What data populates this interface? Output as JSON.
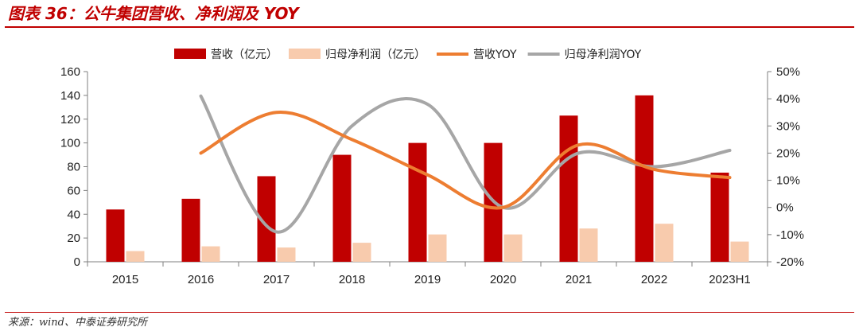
{
  "header": {
    "title": "图表 36：公牛集团营收、净利润及 YOY"
  },
  "footer": {
    "source": "来源：wind、中泰证券研究所"
  },
  "chart_data": {
    "type": "bar",
    "categories": [
      "2015",
      "2016",
      "2017",
      "2018",
      "2019",
      "2020",
      "2021",
      "2022",
      "2023H1"
    ],
    "series": [
      {
        "name": "营收（亿元）",
        "type": "bar",
        "axis": "left",
        "color": "#c00000",
        "values": [
          44,
          53,
          72,
          90,
          100,
          100,
          123,
          140,
          75
        ]
      },
      {
        "name": "归母净利润（亿元）",
        "type": "bar",
        "axis": "left",
        "color": "#f8cbad",
        "values": [
          9,
          13,
          12,
          16,
          23,
          23,
          28,
          32,
          17
        ]
      },
      {
        "name": "营收YOY",
        "type": "line",
        "axis": "right",
        "color": "#ed7d31",
        "values": [
          null,
          20,
          35,
          25,
          12,
          0,
          23,
          14,
          11
        ]
      },
      {
        "name": "归母净利润YOY",
        "type": "line",
        "axis": "right",
        "color": "#a6a6a6",
        "values": [
          null,
          41,
          -9,
          30,
          38,
          0,
          20,
          15,
          21
        ]
      }
    ],
    "y_left": {
      "min": 0,
      "max": 160,
      "step": 20,
      "ticks": [
        "0",
        "20",
        "40",
        "60",
        "80",
        "100",
        "120",
        "140",
        "160"
      ]
    },
    "y_right": {
      "min": -20,
      "max": 50,
      "step": 10,
      "ticks": [
        "-20%",
        "-10%",
        "0%",
        "10%",
        "20%",
        "30%",
        "40%",
        "50%"
      ]
    },
    "legend": "top",
    "grid": false
  }
}
